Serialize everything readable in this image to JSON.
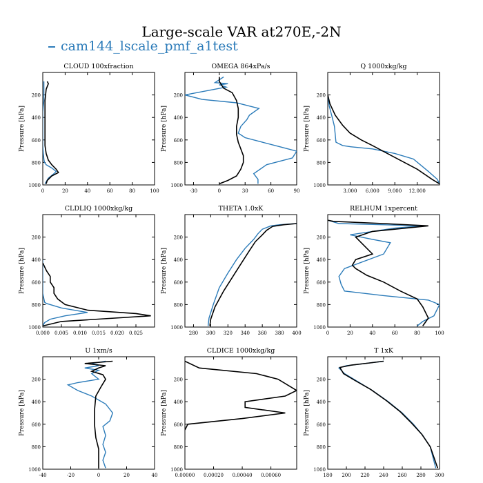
{
  "title": "Large-scale VAR at270E,-2N",
  "legend": {
    "label": "cam144_lscale_pmf_a1test",
    "color": "#2b7bb9"
  },
  "colors": {
    "model": "#2b7bb9",
    "reference": "#000000"
  },
  "ylabel": "Pressure [hPa]",
  "chart_data": [
    {
      "type": "line",
      "title": "CLOUD  100xfraction",
      "ylabel": "Pressure [hPa]",
      "xlim": [
        0,
        100
      ],
      "ylim": [
        1000,
        0
      ],
      "y_inverted": true,
      "xticks": [
        0,
        20,
        40,
        60,
        80,
        100
      ],
      "xtick_labels": [
        "0",
        "20",
        "40",
        "60",
        "80",
        "100"
      ],
      "yticks": [
        200,
        400,
        600,
        800,
        1000
      ],
      "ytick_labels": [
        "200",
        "400",
        "600",
        "800",
        "1000"
      ],
      "series": [
        {
          "color": "#2b7bb9",
          "x": [
            1,
            1,
            1,
            0,
            0,
            0,
            0,
            0.5,
            1,
            1.5,
            3,
            8,
            12,
            10,
            5,
            2
          ],
          "y": [
            80,
            150,
            250,
            350,
            450,
            550,
            650,
            720,
            770,
            800,
            820,
            850,
            880,
            900,
            940,
            990
          ]
        },
        {
          "color": "#000000",
          "x": [
            4,
            5,
            3,
            2,
            2,
            2,
            2,
            2,
            3,
            5,
            8,
            12,
            14,
            8,
            4,
            3
          ],
          "y": [
            80,
            100,
            150,
            250,
            350,
            450,
            550,
            650,
            720,
            780,
            820,
            860,
            890,
            920,
            960,
            990
          ]
        }
      ]
    },
    {
      "type": "line",
      "title": "OMEGA  864xPa/s",
      "ylabel": "Pressure [hPa]",
      "xlim": [
        -40,
        90
      ],
      "ylim": [
        1000,
        0
      ],
      "y_inverted": true,
      "xticks": [
        -30,
        0,
        30,
        60,
        90
      ],
      "xtick_labels": [
        "-30",
        "0",
        "30",
        "60",
        "90"
      ],
      "yticks": [
        200,
        400,
        600,
        800,
        1000
      ],
      "ytick_labels": [
        "200",
        "400",
        "600",
        "800",
        "1000"
      ],
      "series": [
        {
          "color": "#2b7bb9",
          "x": [
            5,
            -5,
            10,
            0,
            8,
            -40,
            -20,
            20,
            46,
            35,
            32,
            25,
            22,
            30,
            50,
            70,
            90,
            85,
            55,
            40,
            45,
            45
          ],
          "y": [
            40,
            90,
            100,
            110,
            130,
            200,
            240,
            270,
            320,
            380,
            420,
            480,
            540,
            580,
            620,
            660,
            700,
            760,
            820,
            900,
            950,
            990
          ]
        },
        {
          "color": "#000000",
          "x": [
            0,
            0,
            5,
            15,
            20,
            22,
            22,
            20,
            20,
            22,
            25,
            28,
            28,
            25,
            20,
            10,
            0
          ],
          "y": [
            40,
            80,
            140,
            180,
            250,
            320,
            400,
            480,
            550,
            620,
            680,
            740,
            800,
            860,
            920,
            960,
            990
          ]
        }
      ]
    },
    {
      "type": "line",
      "title": "Q  1000xkg/kg",
      "ylabel": "Pressure [hPa]",
      "xlim": [
        0,
        15000
      ],
      "ylim": [
        1000,
        0
      ],
      "y_inverted": true,
      "xticks": [
        3000,
        6000,
        9000,
        12000
      ],
      "xtick_labels": [
        "3.000",
        "6.000",
        "9.000",
        "12.000"
      ],
      "yticks": [
        200,
        400,
        600,
        800,
        1000
      ],
      "ytick_labels": [
        "200",
        "400",
        "600",
        "800",
        "1000"
      ],
      "series": [
        {
          "color": "#2b7bb9",
          "x": [
            0,
            200,
            600,
            900,
            1000,
            1100,
            2000,
            3000,
            6000,
            9000,
            11500,
            13500,
            14700,
            15000
          ],
          "y": [
            200,
            300,
            400,
            480,
            550,
            620,
            650,
            660,
            680,
            720,
            770,
            880,
            950,
            990
          ]
        },
        {
          "color": "#000000",
          "x": [
            0,
            300,
            1000,
            2000,
            3000,
            4500,
            6000,
            8000,
            10000,
            12000,
            14000,
            15000
          ],
          "y": [
            200,
            280,
            380,
            470,
            540,
            600,
            650,
            720,
            790,
            860,
            950,
            990
          ]
        }
      ]
    },
    {
      "type": "line",
      "title": "CLDLIQ  1000xkg/kg",
      "ylabel": "Pressure [hPa]",
      "xlim": [
        0,
        0.03
      ],
      "ylim": [
        1000,
        0
      ],
      "y_inverted": true,
      "xticks": [
        0.0,
        0.005,
        0.01,
        0.015,
        0.02,
        0.025
      ],
      "xtick_labels": [
        "0.000",
        "0.005",
        "0.010",
        "0.015",
        "0.020",
        "0.025"
      ],
      "yticks": [
        200,
        400,
        600,
        800,
        1000
      ],
      "ytick_labels": [
        "200",
        "400",
        "600",
        "800",
        "1000"
      ],
      "series": [
        {
          "color": "#2b7bb9",
          "x": [
            0,
            0,
            0.0005,
            0.001,
            0.002,
            0.005,
            0.012,
            0.006,
            0.002,
            0.0005,
            0
          ],
          "y": [
            400,
            700,
            780,
            790,
            800,
            830,
            870,
            900,
            930,
            960,
            990
          ]
        },
        {
          "color": "#000000",
          "x": [
            0,
            0.001,
            0.002,
            0.002,
            0.003,
            0.003,
            0.004,
            0.006,
            0.012,
            0.025,
            0.029,
            0.005,
            0
          ],
          "y": [
            430,
            500,
            550,
            600,
            650,
            700,
            750,
            800,
            850,
            880,
            900,
            950,
            990
          ]
        }
      ]
    },
    {
      "type": "line",
      "title": "THETA  1.0xK",
      "ylabel": "Pressure [hPa]",
      "xlim": [
        270,
        400
      ],
      "ylim": [
        1000,
        0
      ],
      "y_inverted": true,
      "xticks": [
        280,
        300,
        320,
        340,
        360,
        380,
        400
      ],
      "xtick_labels": [
        "280",
        "300",
        "320",
        "340",
        "360",
        "380",
        "400"
      ],
      "yticks": [
        200,
        400,
        600,
        800,
        1000
      ],
      "ytick_labels": [
        "200",
        "400",
        "600",
        "800",
        "1000"
      ],
      "series": [
        {
          "color": "#2b7bb9",
          "x": [
            400,
            380,
            370,
            360,
            355,
            350,
            340,
            330,
            320,
            310,
            303,
            298,
            297
          ],
          "y": [
            80,
            90,
            100,
            130,
            170,
            220,
            300,
            400,
            520,
            650,
            800,
            920,
            990
          ]
        },
        {
          "color": "#000000",
          "x": [
            400,
            385,
            372,
            365,
            360,
            352,
            345,
            335,
            325,
            315,
            305,
            300,
            299
          ],
          "y": [
            80,
            90,
            105,
            140,
            180,
            240,
            320,
            440,
            560,
            680,
            820,
            930,
            990
          ]
        }
      ]
    },
    {
      "type": "line",
      "title": "RELHUM  1xpercent",
      "ylabel": "Pressure [hPa]",
      "xlim": [
        0,
        100
      ],
      "ylim": [
        1000,
        0
      ],
      "y_inverted": true,
      "xticks": [
        0,
        20,
        40,
        60,
        80,
        100
      ],
      "xtick_labels": [
        "0",
        "20",
        "40",
        "60",
        "80",
        "100"
      ],
      "yticks": [
        200,
        400,
        600,
        800,
        1000
      ],
      "ytick_labels": [
        "200",
        "400",
        "600",
        "800",
        "1000"
      ],
      "series": [
        {
          "color": "#2b7bb9",
          "x": [
            0,
            10,
            85,
            60,
            20,
            40,
            56,
            50,
            15,
            10,
            12,
            15,
            50,
            90,
            100,
            95,
            85,
            80
          ],
          "y": [
            50,
            80,
            100,
            120,
            180,
            220,
            250,
            350,
            480,
            550,
            620,
            680,
            720,
            760,
            800,
            900,
            950,
            990
          ]
        },
        {
          "color": "#000000",
          "x": [
            0,
            5,
            50,
            90,
            40,
            25,
            30,
            35,
            40,
            25,
            22,
            25,
            35,
            50,
            65,
            80,
            85,
            90,
            85
          ],
          "y": [
            50,
            60,
            80,
            100,
            150,
            200,
            250,
            300,
            350,
            400,
            450,
            480,
            540,
            600,
            680,
            750,
            820,
            920,
            990
          ]
        }
      ]
    },
    {
      "type": "line",
      "title": "U  1xm/s",
      "ylabel": "Pressure [hPa]",
      "xlim": [
        -40,
        40
      ],
      "ylim": [
        1000,
        0
      ],
      "y_inverted": true,
      "xticks": [
        -40,
        -20,
        0,
        20,
        40
      ],
      "xtick_labels": [
        "-40",
        "-20",
        "0",
        "20",
        "40"
      ],
      "yticks": [
        200,
        400,
        600,
        800,
        1000
      ],
      "ytick_labels": [
        "200",
        "400",
        "600",
        "800",
        "1000"
      ],
      "series": [
        {
          "color": "#2b7bb9",
          "x": [
            5,
            -5,
            0,
            -10,
            0,
            -5,
            0,
            -15,
            -22,
            -15,
            -5,
            5,
            10,
            8,
            3,
            5,
            3,
            5,
            3,
            5
          ],
          "y": [
            40,
            60,
            80,
            100,
            120,
            150,
            200,
            230,
            250,
            300,
            350,
            420,
            500,
            570,
            620,
            700,
            780,
            850,
            920,
            990
          ]
        },
        {
          "color": "#000000",
          "x": [
            10,
            -10,
            5,
            0,
            -5,
            3,
            5,
            2,
            -2,
            -3,
            -3,
            -2,
            0,
            0,
            0
          ],
          "y": [
            40,
            60,
            80,
            100,
            130,
            160,
            200,
            260,
            350,
            480,
            600,
            720,
            820,
            920,
            990
          ]
        }
      ]
    },
    {
      "type": "line",
      "title": "CLDICE  1000xkg/kg",
      "ylabel": "Pressure [hPa]",
      "xlim": [
        0,
        0.00078
      ],
      "ylim": [
        1000,
        0
      ],
      "y_inverted": true,
      "xticks": [
        0.0,
        0.0002,
        0.0004,
        0.0006
      ],
      "xtick_labels": [
        "0.00000",
        "0.00020",
        "0.00040",
        "0.00060"
      ],
      "yticks": [
        200,
        400,
        600,
        800,
        1000
      ],
      "ytick_labels": [
        "200",
        "400",
        "600",
        "800",
        "1000"
      ],
      "series": [
        {
          "color": "#000000",
          "x": [
            0,
            0.0001,
            0.0005,
            0.00065,
            0.00078,
            0.0007,
            0.00042,
            0.00042,
            0.0007,
            0.0004,
            2e-05,
            0
          ],
          "y": [
            40,
            100,
            150,
            200,
            300,
            350,
            400,
            450,
            500,
            550,
            600,
            650
          ]
        }
      ]
    },
    {
      "type": "line",
      "title": "T  1xK",
      "ylabel": "Pressure [hPa]",
      "xlim": [
        180,
        300
      ],
      "ylim": [
        1000,
        0
      ],
      "y_inverted": true,
      "xticks": [
        180,
        200,
        220,
        240,
        260,
        280,
        300
      ],
      "xtick_labels": [
        "180",
        "200",
        "220",
        "240",
        "260",
        "280",
        "300"
      ],
      "yticks": [
        200,
        400,
        600,
        800,
        1000
      ],
      "ytick_labels": [
        "200",
        "400",
        "600",
        "800",
        "1000"
      ],
      "series": [
        {
          "color": "#2b7bb9",
          "x": [
            240,
            220,
            200,
            192,
            198,
            212,
            228,
            245,
            260,
            272,
            282,
            290,
            296
          ],
          "y": [
            40,
            60,
            80,
            100,
            150,
            220,
            300,
            400,
            500,
            600,
            700,
            800,
            990
          ]
        },
        {
          "color": "#000000",
          "x": [
            240,
            225,
            205,
            193,
            197,
            210,
            226,
            243,
            258,
            270,
            281,
            290,
            298
          ],
          "y": [
            40,
            55,
            75,
            95,
            150,
            215,
            290,
            390,
            490,
            590,
            690,
            800,
            990
          ]
        }
      ]
    }
  ]
}
